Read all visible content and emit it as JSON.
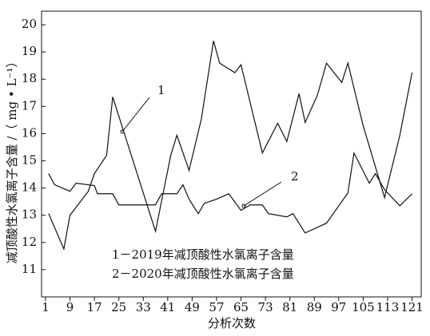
{
  "chart_data": {
    "type": "line",
    "xlabel": "分析次数",
    "ylabel": "减顶酸性水氯离子含量 /（ mg • L⁻¹）",
    "xlim": [
      -0.3,
      124
    ],
    "ylim": [
      10,
      20.5
    ],
    "xticks": [
      1,
      9,
      17,
      25,
      33,
      41,
      49,
      57,
      65,
      73,
      81,
      89,
      97,
      105,
      113,
      121
    ],
    "yticks": [
      11,
      12,
      13,
      14,
      15,
      16,
      17,
      18,
      19,
      20
    ],
    "grid": false,
    "annotations": [
      "1",
      "2"
    ],
    "series": [
      {
        "name": "1－2019年减顶酸性水氯离子含量",
        "color": "#111111",
        "x": [
          2,
          7,
          9,
          15,
          17,
          21,
          23,
          37,
          42,
          44,
          48,
          52,
          56,
          58,
          63,
          65,
          72,
          77,
          80,
          84,
          86,
          90,
          93,
          98,
          100,
          105,
          112,
          117,
          121
        ],
        "values": [
          13.06,
          11.76,
          13.0,
          13.88,
          14.53,
          15.2,
          17.35,
          12.41,
          15.2,
          15.94,
          14.65,
          16.53,
          19.41,
          18.59,
          18.24,
          18.53,
          15.29,
          16.38,
          15.71,
          17.47,
          16.41,
          17.41,
          18.59,
          17.88,
          18.59,
          16.29,
          13.65,
          15.94,
          18.24
        ]
      },
      {
        "name": "2－2020年减顶酸性水氯离子含量",
        "color": "#111111",
        "x": [
          2,
          4,
          9,
          11,
          17,
          18,
          23,
          25,
          37,
          39,
          44,
          46,
          48,
          51,
          53,
          57,
          61,
          65,
          68,
          72,
          74,
          80,
          82,
          86,
          93,
          100,
          102,
          107,
          109,
          112,
          117,
          121
        ],
        "values": [
          14.53,
          14.12,
          13.88,
          14.18,
          14.09,
          13.79,
          13.79,
          13.38,
          13.38,
          13.79,
          13.79,
          14.12,
          13.59,
          13.06,
          13.44,
          13.59,
          13.79,
          13.18,
          13.38,
          13.38,
          13.06,
          12.94,
          13.06,
          12.35,
          12.71,
          13.82,
          15.29,
          14.18,
          14.53,
          13.94,
          13.35,
          13.79
        ]
      }
    ]
  }
}
